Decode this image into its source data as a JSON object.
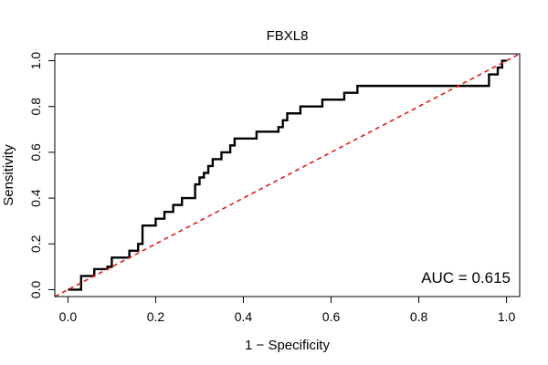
{
  "chart_data": {
    "type": "line",
    "title": "FBXL8",
    "xlabel": "1 − Specificity",
    "ylabel": "Sensitivity",
    "xlim": [
      -0.03,
      1.03
    ],
    "ylim": [
      -0.03,
      1.03
    ],
    "x_ticks": [
      0.0,
      0.2,
      0.4,
      0.6,
      0.8,
      1.0
    ],
    "x_tick_labels": [
      "0.0",
      "0.2",
      "0.4",
      "0.6",
      "0.8",
      "1.0"
    ],
    "y_ticks": [
      0.0,
      0.2,
      0.4,
      0.6,
      0.8,
      1.0
    ],
    "y_tick_labels": [
      "0.0",
      "0.2",
      "0.4",
      "0.6",
      "0.8",
      "1.0"
    ],
    "grid": false,
    "annotation": "AUC = 0.615",
    "series": [
      {
        "color": "#000000",
        "style": "solid",
        "x": [
          0.0,
          0.03,
          0.03,
          0.03,
          0.06,
          0.06,
          0.06,
          0.09,
          0.09,
          0.1,
          0.1,
          0.1,
          0.1,
          0.14,
          0.14,
          0.14,
          0.16,
          0.16,
          0.17,
          0.17,
          0.17,
          0.2,
          0.2,
          0.22,
          0.22,
          0.24,
          0.24,
          0.26,
          0.26,
          0.29,
          0.29,
          0.3,
          0.3,
          0.31,
          0.31,
          0.32,
          0.32,
          0.33,
          0.33,
          0.35,
          0.35,
          0.37,
          0.37,
          0.38,
          0.38,
          0.43,
          0.43,
          0.48,
          0.48,
          0.49,
          0.49,
          0.5,
          0.5,
          0.53,
          0.53,
          0.58,
          0.58,
          0.63,
          0.63,
          0.66,
          0.66,
          0.69,
          0.69,
          0.96,
          0.96,
          0.98,
          0.98,
          0.99,
          0.99,
          1.0
        ],
        "y": [
          0.0,
          0.0,
          0.03,
          0.06,
          0.06,
          0.07,
          0.09,
          0.09,
          0.1,
          0.1,
          0.12,
          0.13,
          0.14,
          0.14,
          0.17,
          0.17,
          0.17,
          0.2,
          0.2,
          0.23,
          0.28,
          0.28,
          0.31,
          0.31,
          0.34,
          0.34,
          0.37,
          0.37,
          0.4,
          0.4,
          0.46,
          0.46,
          0.49,
          0.49,
          0.51,
          0.51,
          0.54,
          0.54,
          0.57,
          0.57,
          0.6,
          0.6,
          0.63,
          0.63,
          0.66,
          0.66,
          0.69,
          0.69,
          0.71,
          0.71,
          0.74,
          0.74,
          0.77,
          0.77,
          0.8,
          0.8,
          0.83,
          0.83,
          0.86,
          0.86,
          0.89,
          0.89,
          0.89,
          0.89,
          0.94,
          0.94,
          0.97,
          0.97,
          1.0,
          1.0
        ]
      },
      {
        "color": "#e31a1c",
        "style": "dashed",
        "x": [
          -0.03,
          1.03
        ],
        "y": [
          -0.03,
          1.03
        ]
      }
    ]
  }
}
